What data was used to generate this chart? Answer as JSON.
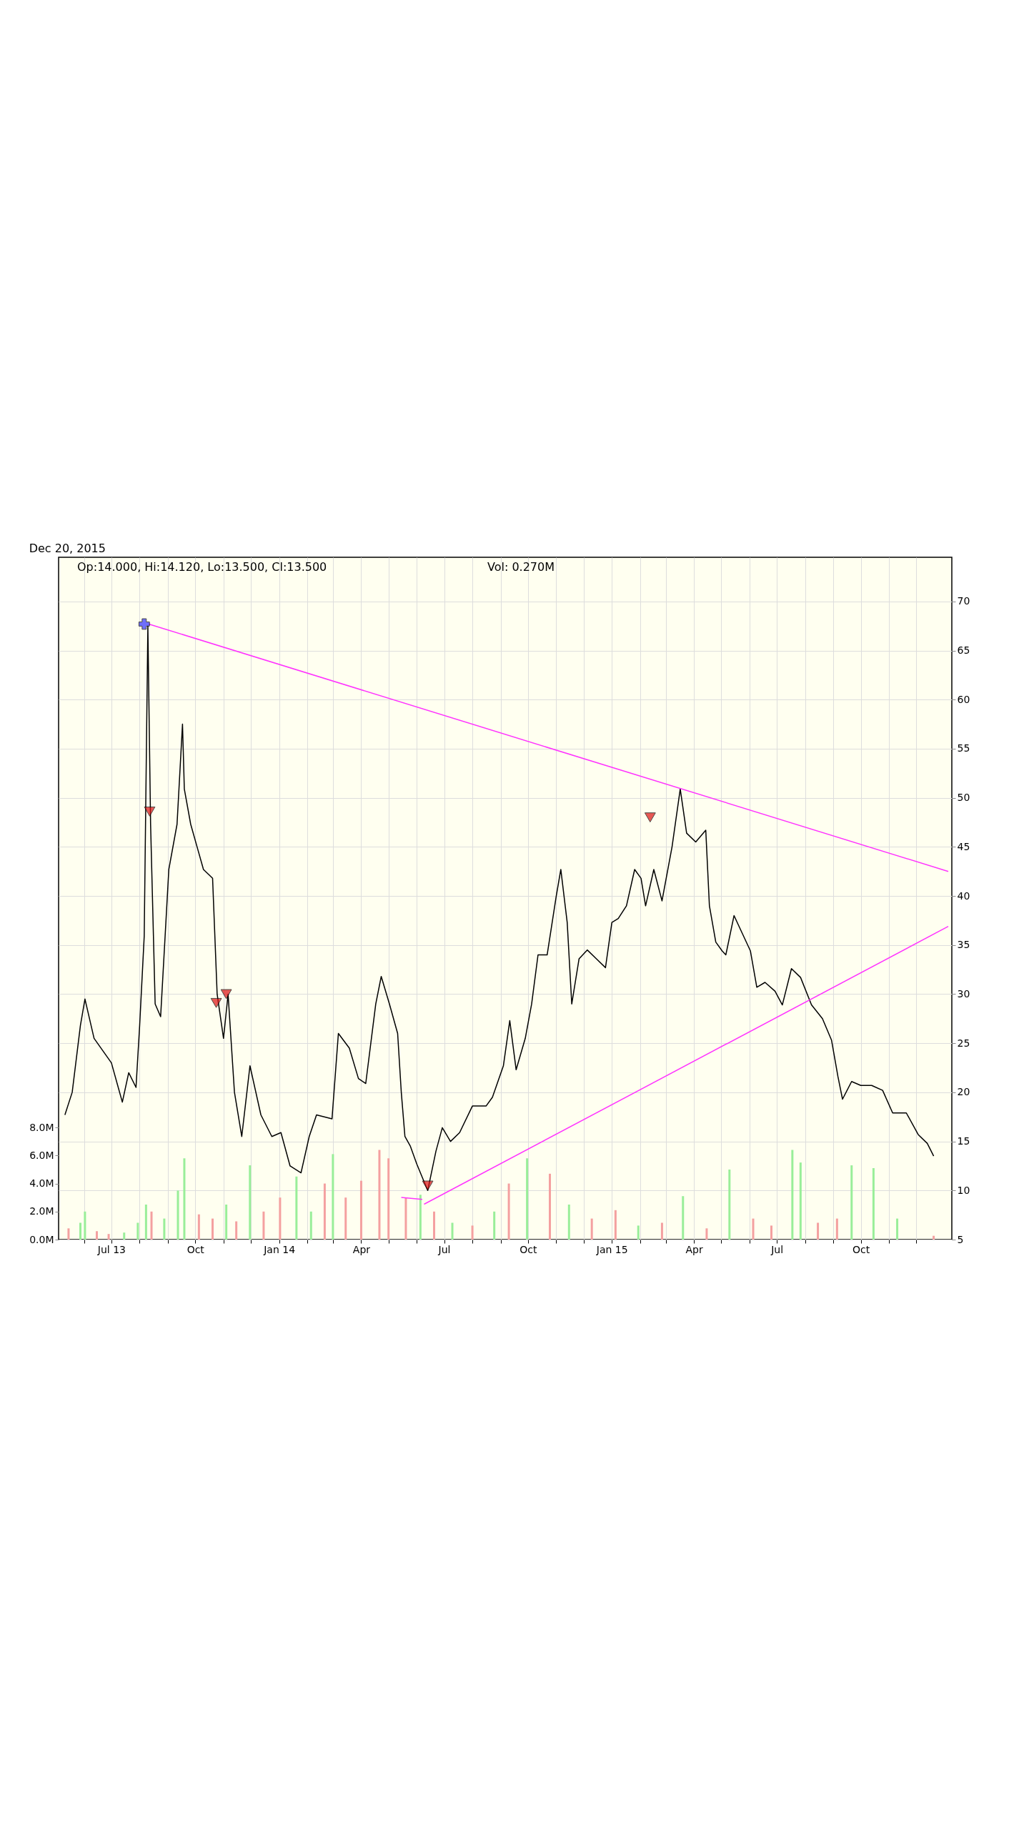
{
  "chart_data": {
    "type": "line",
    "subtitle": "Dec 20, 2015",
    "annotations": [
      "Op:14.000, Hi:14.120, Lo:13.500, Cl:13.500",
      "Vol: 0.270M"
    ],
    "xlim": [
      "2013-05-08",
      "2016-01-05"
    ],
    "xticks": [
      {
        "value": "2013-06-01",
        "label": null
      },
      {
        "value": "2013-07-01",
        "label": "Jul 13"
      },
      {
        "value": "2013-08-01",
        "label": null
      },
      {
        "value": "2013-09-01",
        "label": null
      },
      {
        "value": "2013-10-01",
        "label": "Oct"
      },
      {
        "value": "2013-11-01",
        "label": null
      },
      {
        "value": "2013-12-01",
        "label": null
      },
      {
        "value": "2014-01-01",
        "label": "Jan 14"
      },
      {
        "value": "2014-02-01",
        "label": null
      },
      {
        "value": "2014-03-01",
        "label": null
      },
      {
        "value": "2014-04-01",
        "label": "Apr"
      },
      {
        "value": "2014-05-01",
        "label": null
      },
      {
        "value": "2014-06-01",
        "label": null
      },
      {
        "value": "2014-07-01",
        "label": "Jul"
      },
      {
        "value": "2014-08-01",
        "label": null
      },
      {
        "value": "2014-09-01",
        "label": null
      },
      {
        "value": "2014-10-01",
        "label": "Oct"
      },
      {
        "value": "2014-11-01",
        "label": null
      },
      {
        "value": "2014-12-01",
        "label": null
      },
      {
        "value": "2015-01-01",
        "label": "Jan 15"
      },
      {
        "value": "2015-02-01",
        "label": null
      },
      {
        "value": "2015-03-01",
        "label": null
      },
      {
        "value": "2015-04-01",
        "label": "Apr"
      },
      {
        "value": "2015-05-01",
        "label": null
      },
      {
        "value": "2015-06-01",
        "label": null
      },
      {
        "value": "2015-07-01",
        "label": "Jul"
      },
      {
        "value": "2015-08-01",
        "label": null
      },
      {
        "value": "2015-09-01",
        "label": null
      },
      {
        "value": "2015-10-01",
        "label": "Oct"
      },
      {
        "value": "2015-11-01",
        "label": null
      },
      {
        "value": "2015-12-01",
        "label": null
      }
    ],
    "ylim": [
      5,
      74.5
    ],
    "yticks": [
      5,
      10,
      15,
      20,
      25,
      30,
      35,
      40,
      45,
      50,
      55,
      60,
      65,
      70
    ],
    "y2lim": [
      0,
      48.7
    ],
    "y2ticks": [
      {
        "value": 0,
        "label": "0.0M"
      },
      {
        "value": 2,
        "label": "2.0M"
      },
      {
        "value": 4,
        "label": "4.0M"
      },
      {
        "value": 6,
        "label": "6.0M"
      },
      {
        "value": 8,
        "label": "8.0M"
      }
    ],
    "grid": true,
    "legend": false,
    "series": [
      {
        "type": "bar",
        "axis": "y2",
        "x": [
          "2013-05-15",
          "2013-05-28",
          "2013-06-02",
          "2013-06-15",
          "2013-06-28",
          "2013-07-15",
          "2013-07-30",
          "2013-08-08",
          "2013-08-14",
          "2013-08-28",
          "2013-09-12",
          "2013-09-19",
          "2013-10-05",
          "2013-10-20",
          "2013-11-04",
          "2013-11-15",
          "2013-11-30",
          "2013-12-15",
          "2014-01-02",
          "2014-01-20",
          "2014-02-05",
          "2014-02-20",
          "2014-03-01",
          "2014-03-15",
          "2014-04-01",
          "2014-04-21",
          "2014-05-01",
          "2014-05-20",
          "2014-06-05",
          "2014-06-20",
          "2014-07-10",
          "2014-08-01",
          "2014-08-25",
          "2014-09-10",
          "2014-09-30",
          "2014-10-25",
          "2014-11-15",
          "2014-12-10",
          "2015-01-05",
          "2015-01-30",
          "2015-02-25",
          "2015-03-20",
          "2015-04-15",
          "2015-05-10",
          "2015-06-05",
          "2015-06-25",
          "2015-07-18",
          "2015-07-27",
          "2015-08-15",
          "2015-09-05",
          "2015-09-21",
          "2015-10-15",
          "2015-11-10",
          "2015-12-20"
        ],
        "values": [
          0.8,
          1.2,
          2.0,
          0.6,
          0.4,
          0.5,
          1.2,
          2.5,
          2.0,
          1.5,
          3.5,
          5.8,
          1.8,
          1.5,
          2.5,
          1.3,
          5.3,
          2.0,
          3.0,
          4.5,
          2.0,
          4.0,
          6.1,
          3.0,
          4.2,
          6.4,
          5.8,
          3.0,
          3.2,
          2.0,
          1.2,
          1.0,
          2.0,
          4.0,
          5.8,
          4.7,
          2.5,
          1.5,
          2.1,
          1.0,
          1.2,
          3.1,
          0.8,
          5.0,
          1.5,
          1.0,
          6.4,
          5.5,
          1.2,
          1.5,
          5.3,
          5.1,
          1.5,
          0.27
        ],
        "colors": [
          "#f4a0a0",
          "#99ee99",
          "#99ee99",
          "#f4a0a0",
          "#f4a0a0",
          "#99ee99",
          "#99ee99",
          "#99ee99",
          "#f4a0a0",
          "#99ee99",
          "#99ee99",
          "#99ee99",
          "#f4a0a0",
          "#f4a0a0",
          "#99ee99",
          "#f4a0a0",
          "#99ee99",
          "#f4a0a0",
          "#f4a0a0",
          "#99ee99",
          "#99ee99",
          "#f4a0a0",
          "#99ee99",
          "#f4a0a0",
          "#f4a0a0",
          "#f4a0a0",
          "#f4a0a0",
          "#f4a0a0",
          "#99ee99",
          "#f4a0a0",
          "#99ee99",
          "#f4a0a0",
          "#99ee99",
          "#f4a0a0",
          "#99ee99",
          "#f4a0a0",
          "#99ee99",
          "#f4a0a0",
          "#f4a0a0",
          "#99ee99",
          "#f4a0a0",
          "#99ee99",
          "#f4a0a0",
          "#99ee99",
          "#f4a0a0",
          "#f4a0a0",
          "#99ee99",
          "#99ee99",
          "#f4a0a0",
          "#f4a0a0",
          "#99ee99",
          "#99ee99",
          "#99ee99",
          "#f4a0a0"
        ]
      },
      {
        "color": "#000000",
        "x": [
          "2013-05-11",
          "2013-05-19",
          "2013-05-28",
          "2013-06-02",
          "2013-06-12",
          "2013-07-01",
          "2013-07-13",
          "2013-07-20",
          "2013-07-28",
          "2013-08-01",
          "2013-08-06",
          "2013-08-10",
          "2013-08-13",
          "2013-08-18",
          "2013-08-24",
          "2013-09-02",
          "2013-09-11",
          "2013-09-17",
          "2013-09-19",
          "2013-09-26",
          "2013-10-03",
          "2013-10-10",
          "2013-10-20",
          "2013-10-25",
          "2013-11-01",
          "2013-11-06",
          "2013-11-13",
          "2013-11-21",
          "2013-11-30",
          "2013-12-12",
          "2013-12-24",
          "2014-01-03",
          "2014-01-13",
          "2014-01-25",
          "2014-02-03",
          "2014-02-11",
          "2014-02-28",
          "2014-03-07",
          "2014-03-19",
          "2014-03-29",
          "2014-04-06",
          "2014-04-17",
          "2014-04-23",
          "2014-05-02",
          "2014-05-11",
          "2014-05-15",
          "2014-05-19",
          "2014-05-25",
          "2014-06-01",
          "2014-06-09",
          "2014-06-13",
          "2014-06-22",
          "2014-06-29",
          "2014-07-08",
          "2014-07-18",
          "2014-08-01",
          "2014-08-16",
          "2014-08-23",
          "2014-09-04",
          "2014-09-11",
          "2014-09-18",
          "2014-09-28",
          "2014-10-05",
          "2014-10-12",
          "2014-10-22",
          "2014-11-01",
          "2014-11-06",
          "2014-11-13",
          "2014-11-18",
          "2014-11-26",
          "2014-12-05",
          "2014-12-15",
          "2014-12-25",
          "2015-01-01",
          "2015-01-08",
          "2015-01-17",
          "2015-01-26",
          "2015-02-02",
          "2015-02-07",
          "2015-02-16",
          "2015-02-25",
          "2015-03-08",
          "2015-03-17",
          "2015-03-24",
          "2015-04-03",
          "2015-04-14",
          "2015-04-18",
          "2015-04-25",
          "2015-05-02",
          "2015-05-06",
          "2015-05-15",
          "2015-05-24",
          "2015-06-02",
          "2015-06-09",
          "2015-06-18",
          "2015-06-29",
          "2015-07-07",
          "2015-07-17",
          "2015-07-27",
          "2015-08-08",
          "2015-08-20",
          "2015-08-30",
          "2015-09-06",
          "2015-09-11",
          "2015-09-21",
          "2015-10-01",
          "2015-10-13",
          "2015-10-25",
          "2015-11-05",
          "2015-11-20",
          "2015-12-03",
          "2015-12-13",
          "2015-12-20"
        ],
        "values": [
          17.7,
          20,
          26.8,
          29.5,
          25.5,
          23,
          19,
          22,
          20.5,
          26.8,
          35.9,
          67.5,
          47.3,
          29,
          27.7,
          42.7,
          47.3,
          57.5,
          50.9,
          47.3,
          45,
          42.7,
          41.8,
          30,
          25.5,
          30,
          20,
          15.5,
          22.7,
          17.7,
          15.5,
          15.9,
          12.5,
          11.8,
          15.5,
          17.7,
          17.3,
          26,
          24.5,
          21.4,
          20.9,
          29,
          31.8,
          29,
          26,
          20,
          15.5,
          14.5,
          12.7,
          10.9,
          10,
          14,
          16.4,
          15,
          15.9,
          18.6,
          18.6,
          19.5,
          22.7,
          27.3,
          22.3,
          25.5,
          29,
          34,
          34,
          40,
          42.7,
          37.3,
          29,
          33.6,
          34.5,
          33.6,
          32.7,
          37.3,
          37.7,
          39,
          42.7,
          41.8,
          39,
          42.7,
          39.5,
          45,
          50.9,
          46.4,
          45.5,
          46.7,
          39,
          35.3,
          34.4,
          34,
          38,
          36.2,
          34.4,
          30.7,
          31.2,
          30.3,
          28.9,
          32.6,
          31.7,
          28.9,
          27.5,
          25.3,
          21.6,
          19.3,
          21.1,
          20.7,
          20.7,
          20.2,
          17.9,
          17.9,
          15.7,
          14.8,
          13.5
        ]
      },
      {
        "type": "line",
        "color": "#ff33ff",
        "x": [
          "2013-08-11",
          "2016-01-05"
        ],
        "values": [
          67.7,
          42.5
        ]
      },
      {
        "type": "line",
        "color": "#ff33ff",
        "x": [
          "2014-06-09",
          "2016-01-05"
        ],
        "values": [
          8.6,
          36.9
        ]
      },
      {
        "type": "line",
        "color": "#ff33ff",
        "x": [
          "2014-05-15",
          "2014-06-07"
        ],
        "values": [
          9.3,
          9.1
        ]
      },
      {
        "type": "scatter",
        "marker": "triangle",
        "color": "#dd1111",
        "x": [
          "2013-08-12",
          "2013-10-24",
          "2013-11-04",
          "2014-06-13",
          "2015-02-12"
        ],
        "values": [
          48.6,
          29.1,
          30,
          10.5,
          48
        ]
      },
      {
        "type": "scatter",
        "marker": "cross",
        "color": "#3333ff",
        "x": [
          "2013-08-06"
        ],
        "values": [
          67.7
        ]
      }
    ]
  }
}
